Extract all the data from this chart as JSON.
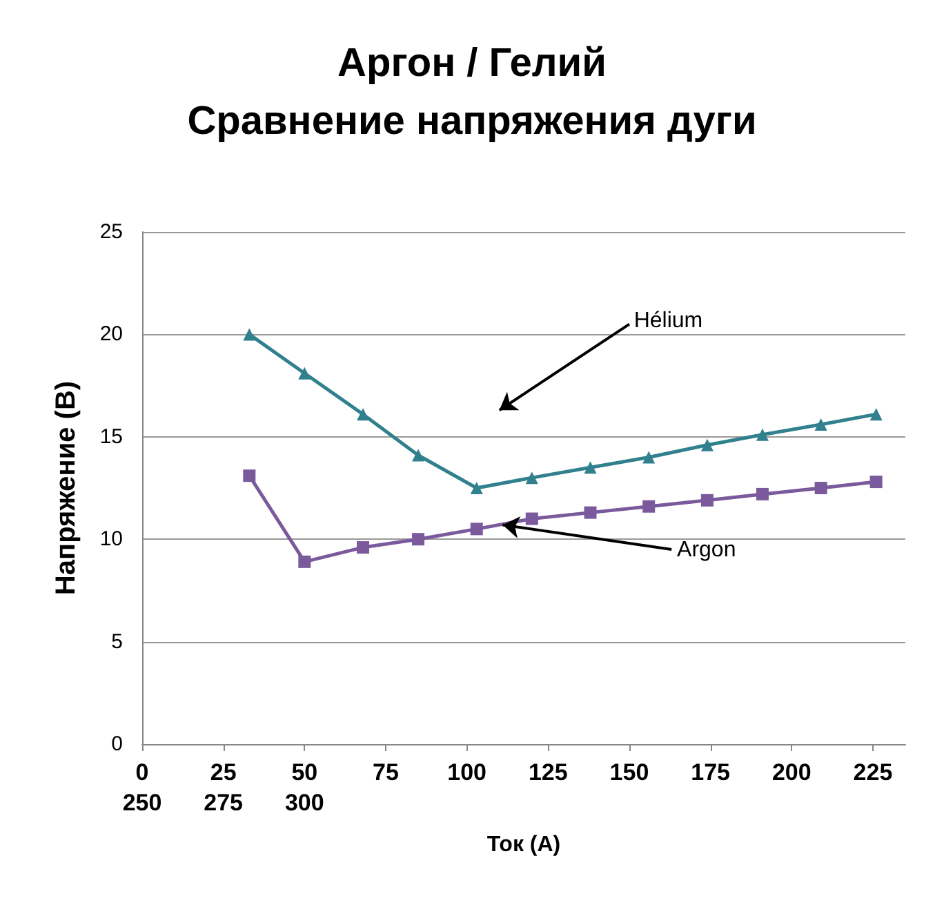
{
  "chart_data": {
    "type": "line",
    "title": "Аргон / Гелий\nСравнение напряжения дуги",
    "xlabel": "Ток (A)",
    "ylabel": "Напряжение (В)",
    "xlim": [
      0,
      235
    ],
    "xticks": [
      0,
      25,
      50,
      75,
      100,
      125,
      150,
      175,
      200,
      225
    ],
    "ylim": [
      0,
      25
    ],
    "yticks": [
      0,
      5,
      10,
      15,
      20,
      25
    ],
    "grid": "y",
    "series": [
      {
        "color": "#31808e",
        "marker": "triangle",
        "x": [
          33,
          50,
          68,
          85,
          103,
          120,
          138,
          156,
          174,
          191,
          209,
          226
        ],
        "values": [
          20.0,
          18.1,
          16.1,
          14.1,
          12.5,
          13.0,
          13.5,
          14.0,
          14.6,
          15.1,
          15.6,
          16.1
        ]
      },
      {
        "color": "#7a5a9c",
        "marker": "square",
        "x": [
          33,
          50,
          68,
          85,
          103,
          120,
          138,
          156,
          174,
          191,
          209,
          226
        ],
        "values": [
          13.1,
          8.9,
          9.6,
          10.0,
          10.5,
          11.0,
          11.3,
          11.6,
          11.9,
          12.2,
          12.5,
          12.8
        ]
      }
    ],
    "annotations": [
      "250",
      "275",
      "300",
      "Hélium",
      {
        "text": "Argon",
        "x": 111,
        "y": 10.7
      }
    ]
  }
}
